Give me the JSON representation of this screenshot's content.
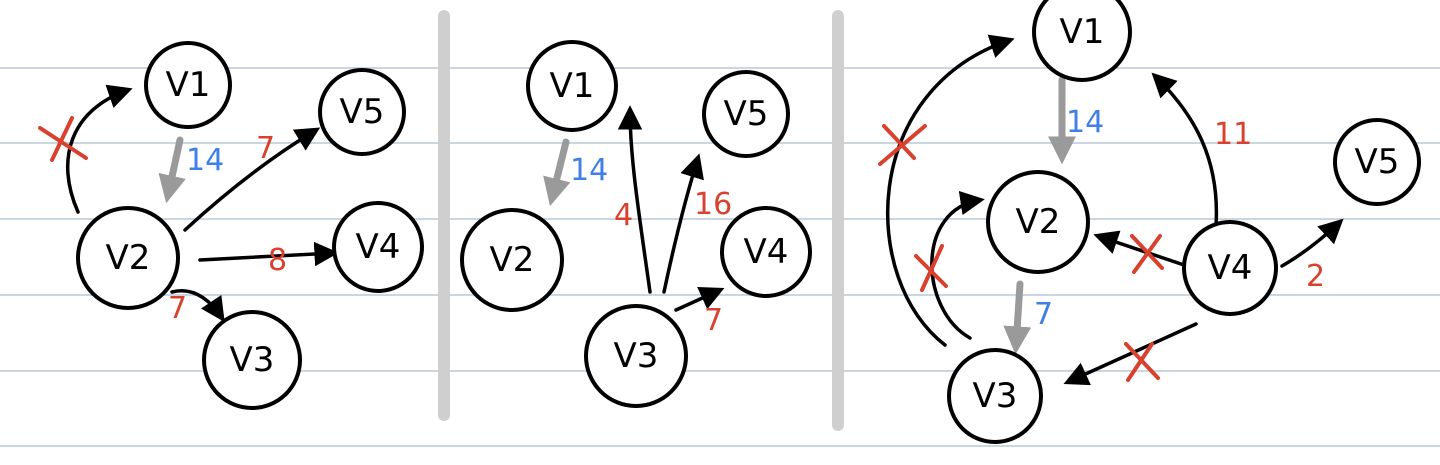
{
  "colors": {
    "rule": "#b9c8d6",
    "divider": "#cfcfcf",
    "ink": "#000000",
    "red_weight": "#d9412e",
    "blue_weight": "#3f7fe8",
    "gray_edge": "#9a9a9a"
  },
  "panels": [
    {
      "nodes": {
        "v1": "V1",
        "v5": "V5",
        "v2": "V2",
        "v4": "V4",
        "v3": "V3"
      },
      "weights": {
        "v1_v2": "14",
        "v2_v5": "7",
        "v2_v4": "8",
        "v2_v3": "7"
      }
    },
    {
      "nodes": {
        "v1": "V1",
        "v5": "V5",
        "v2": "V2",
        "v4": "V4",
        "v3": "V3"
      },
      "weights": {
        "v1_v2": "14",
        "v3_v1": "4",
        "v3_v5": "16",
        "v3_v4": "7"
      }
    },
    {
      "nodes": {
        "v1": "V1",
        "v5": "V5",
        "v2": "V2",
        "v4": "V4",
        "v3": "V3"
      },
      "weights": {
        "v1_v2": "14",
        "v4_v1": "11",
        "v2_v3": "7",
        "v4_v5": "2"
      }
    }
  ]
}
